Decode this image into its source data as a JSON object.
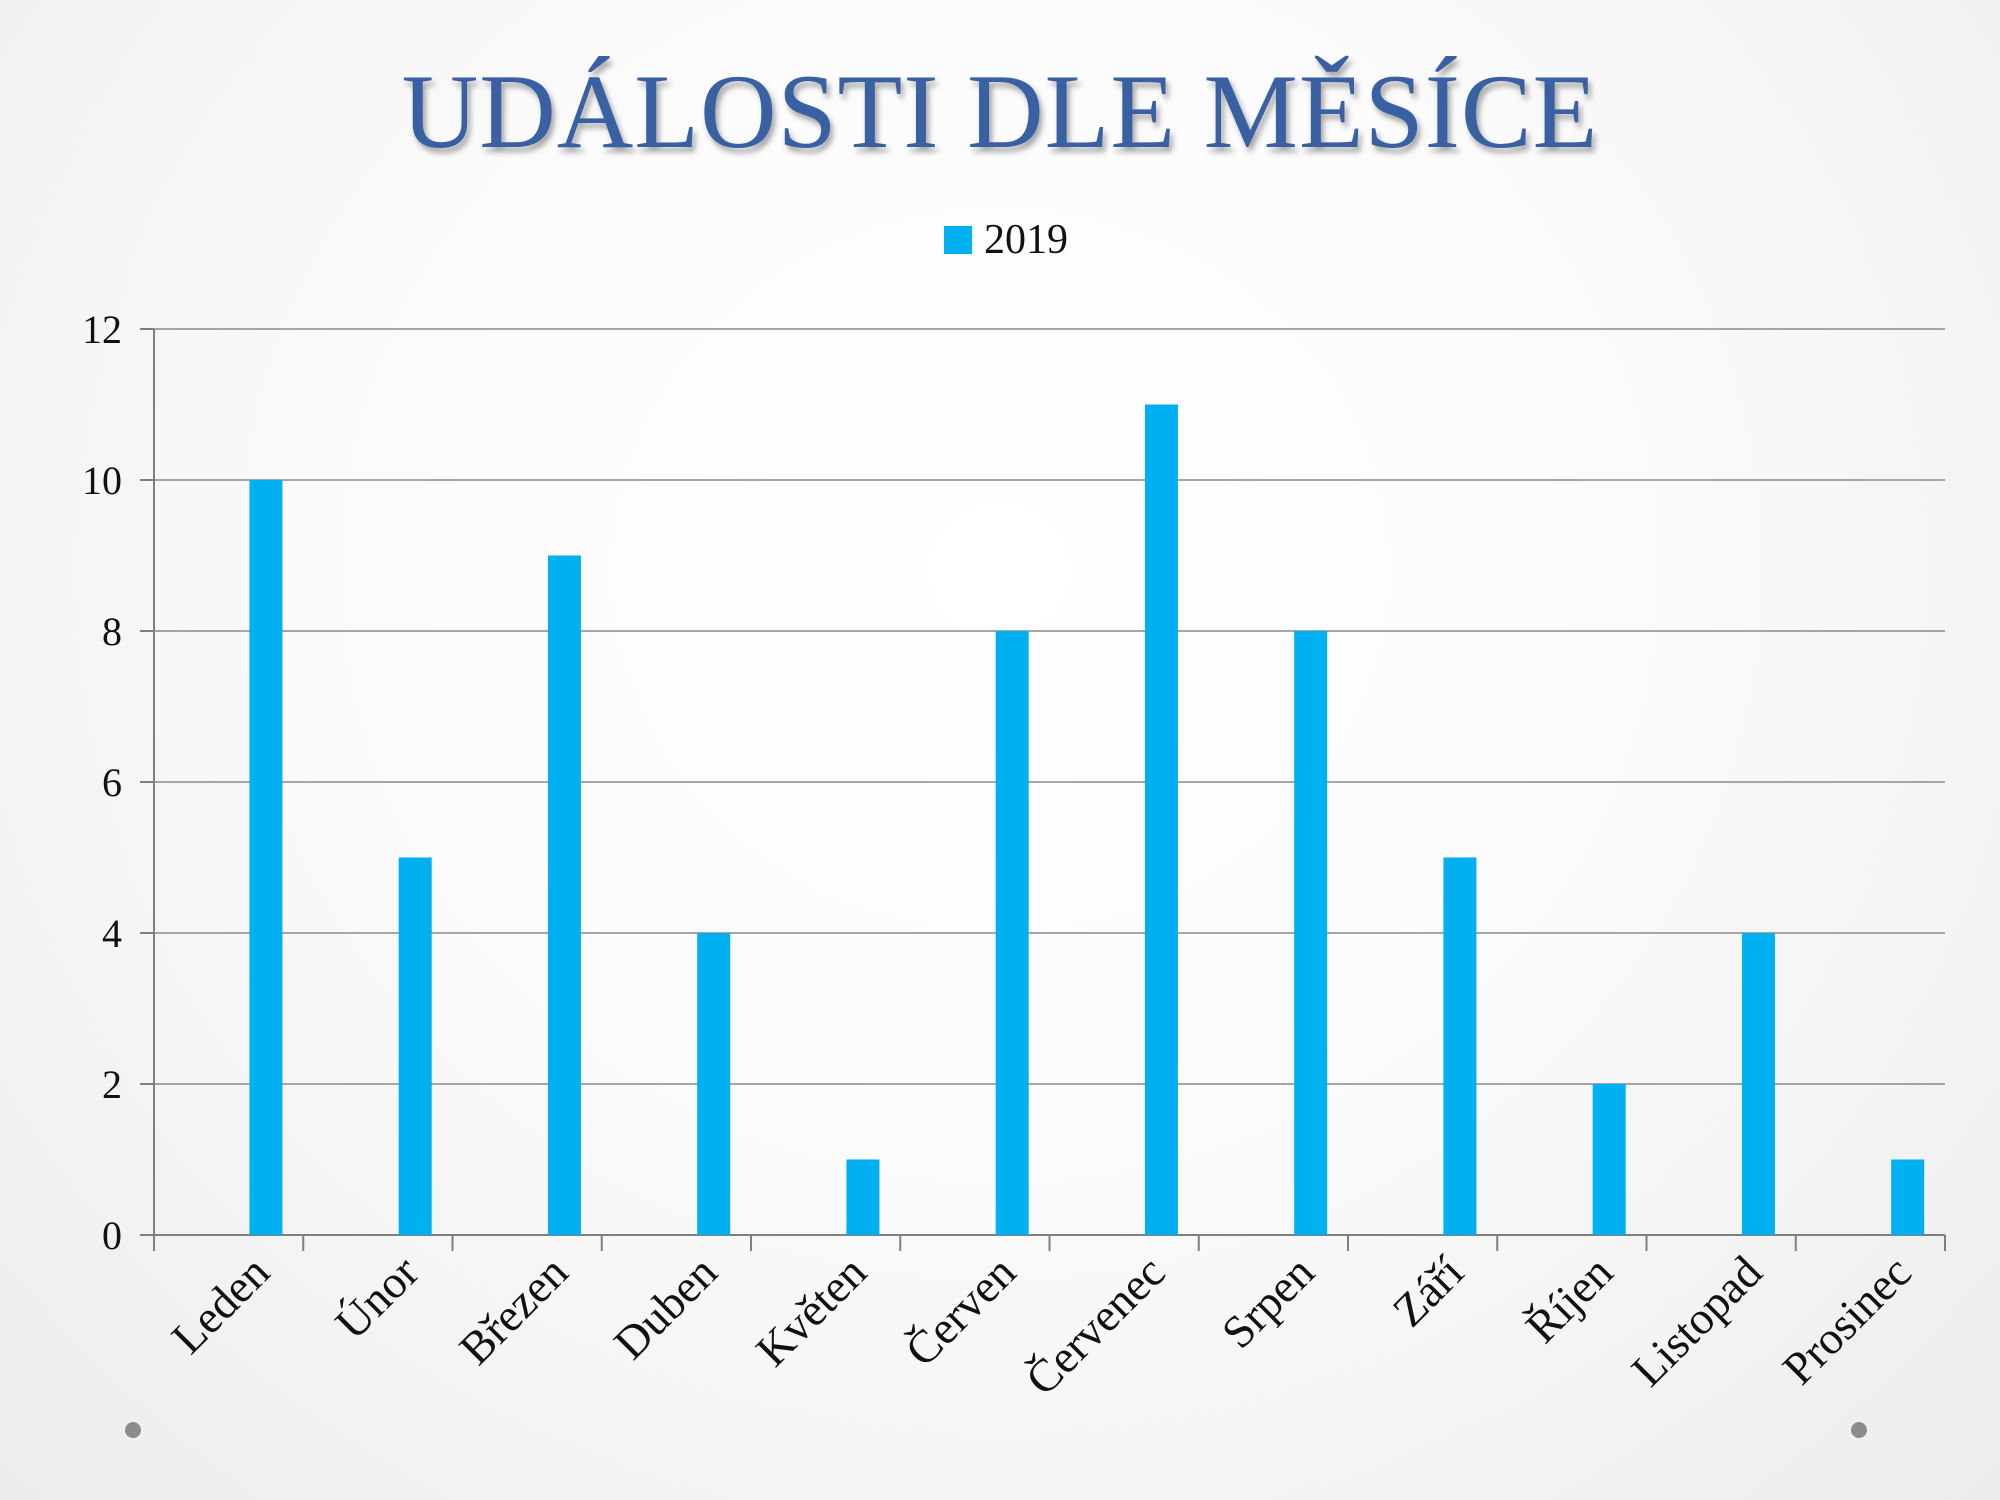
{
  "slide": {
    "title": "UDÁLOSTI DLE MĚSÍCE"
  },
  "colors": {
    "bar": "#00b0f0",
    "title": "#3a60a4",
    "grid": "#8a8a8a",
    "axis": "#7f7f7f"
  },
  "chart_data": {
    "type": "bar",
    "title": "",
    "xlabel": "",
    "ylabel": "",
    "categories": [
      "Leden",
      "Únor",
      "Březen",
      "Duben",
      "Květen",
      "Červen",
      "Červenec",
      "Srpen",
      "Září",
      "Říjen",
      "Listopad",
      "Prosinec"
    ],
    "series": [
      {
        "name": "2019",
        "values": [
          10,
          5,
          9,
          4,
          1,
          8,
          11,
          8,
          5,
          2,
          4,
          1
        ]
      }
    ],
    "ylim": [
      0,
      12
    ],
    "yticks": [
      0,
      2,
      4,
      6,
      8,
      10,
      12
    ],
    "grid": true,
    "legend": "top-center"
  }
}
